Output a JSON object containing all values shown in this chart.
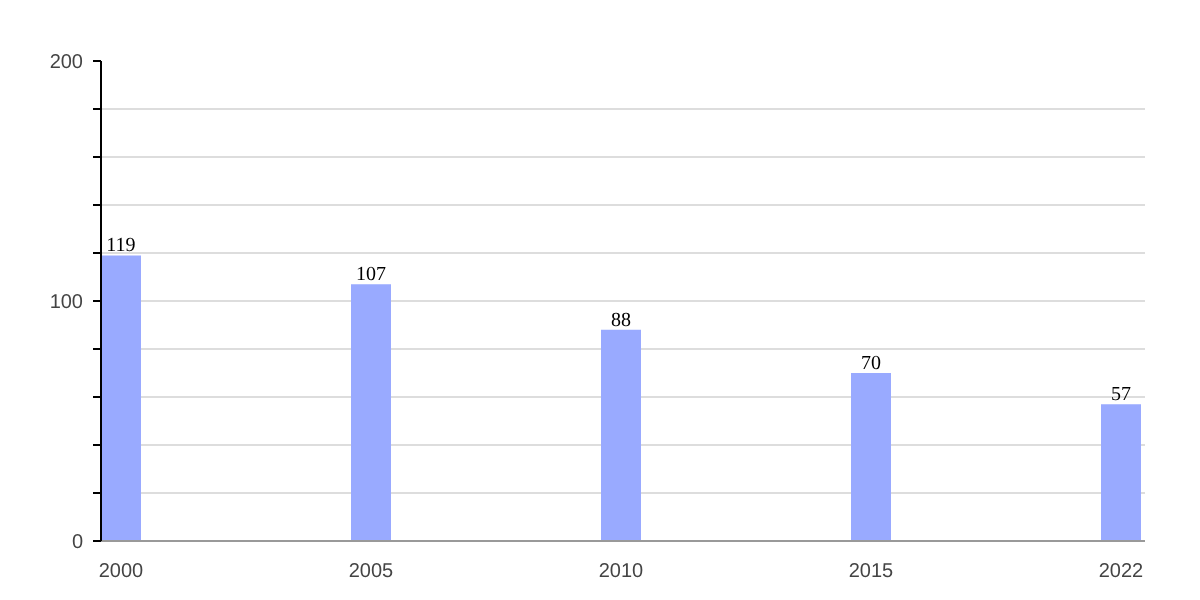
{
  "chart_data": {
    "type": "bar",
    "categories": [
      "2000",
      "2005",
      "2010",
      "2015",
      "2022"
    ],
    "values": [
      119,
      107,
      88,
      70,
      57
    ],
    "color": "#99aaff",
    "ylim": [
      0,
      200
    ],
    "yticks": [
      0,
      {
        "value": 20,
        "label": null
      },
      {
        "value": 40,
        "label": null
      },
      {
        "value": 60,
        "label": null
      },
      {
        "value": 80,
        "label": null
      },
      100,
      {
        "value": 120,
        "label": null
      },
      {
        "value": 140,
        "label": null
      },
      {
        "value": 160,
        "label": null
      },
      {
        "value": 180,
        "label": null
      },
      200
    ],
    "grid": "y",
    "data_labels": true
  }
}
